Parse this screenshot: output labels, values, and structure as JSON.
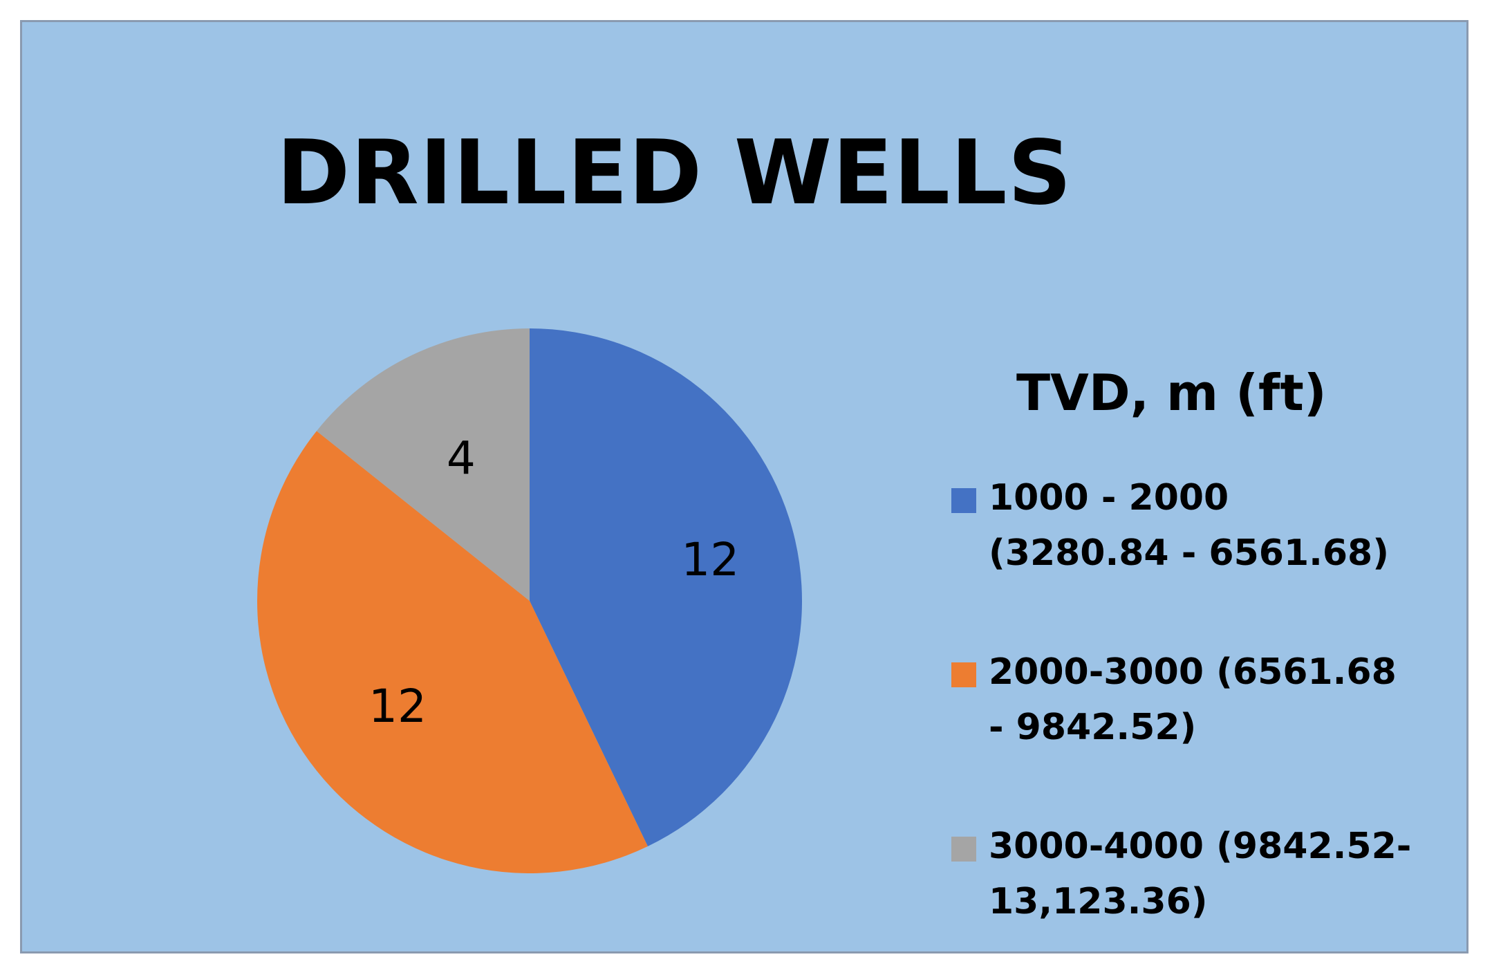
{
  "chart_data": {
    "type": "pie",
    "title": "DRILLED WELLS",
    "legend_title": "TVD, m (ft)",
    "legend_position": "right",
    "categories": [
      "1000 - 2000 (3280.84 - 6561.68)",
      "2000-3000 (6561.68 - 9842.52)",
      "3000-4000 (9842.52- 13,123.36)"
    ],
    "values": [
      12,
      12,
      4
    ],
    "data_labels": [
      "12",
      "12",
      "4"
    ],
    "colors": [
      "#4472c4",
      "#ed7d31",
      "#a5a5a5"
    ],
    "background": "#9dc3e6"
  }
}
